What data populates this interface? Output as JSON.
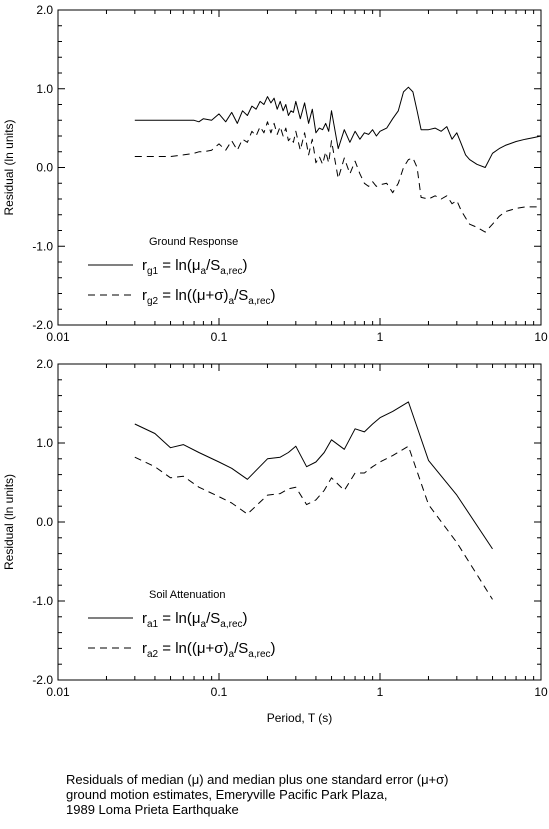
{
  "chart_data": [
    {
      "type": "line",
      "xscale": "log",
      "xlim": [
        0.01,
        10
      ],
      "ylim": [
        -2.0,
        2.0
      ],
      "x_tick_labels": [
        "0.01",
        "0.1",
        "1",
        "10"
      ],
      "y_tick_labels": [
        "2.0",
        "1.0",
        "0.0",
        "-1.0",
        "-2.0"
      ],
      "ylabel": "Residual (ln units)",
      "xlabel": "",
      "legend_title": "Ground Response",
      "legend_location": "lower-left",
      "series": [
        {
          "name": "r_g1 = ln(μ_a/S_a,rec)",
          "legend": {
            "main": "r",
            "sub": "g1",
            "eq": " = ln(μ",
            "sub2": "a",
            "mid": "/S",
            "sub3": "a,rec",
            "end": ")"
          },
          "style": "solid",
          "x": [
            0.03,
            0.04,
            0.05,
            0.06,
            0.07,
            0.075,
            0.08,
            0.09,
            0.1,
            0.11,
            0.12,
            0.13,
            0.14,
            0.15,
            0.16,
            0.17,
            0.18,
            0.19,
            0.2,
            0.21,
            0.22,
            0.23,
            0.24,
            0.25,
            0.26,
            0.27,
            0.28,
            0.29,
            0.3,
            0.32,
            0.34,
            0.36,
            0.38,
            0.4,
            0.42,
            0.44,
            0.46,
            0.48,
            0.5,
            0.55,
            0.6,
            0.65,
            0.7,
            0.75,
            0.8,
            0.85,
            0.9,
            0.95,
            1.0,
            1.1,
            1.2,
            1.3,
            1.4,
            1.5,
            1.6,
            1.7,
            1.8,
            2.0,
            2.2,
            2.4,
            2.6,
            2.8,
            3.0,
            3.2,
            3.4,
            3.6,
            4.0,
            4.5,
            5.0,
            5.5,
            6.0,
            7.0,
            8.0,
            9.0,
            10.0
          ],
          "values": [
            0.6,
            0.6,
            0.6,
            0.6,
            0.6,
            0.58,
            0.62,
            0.6,
            0.68,
            0.58,
            0.7,
            0.56,
            0.72,
            0.66,
            0.78,
            0.74,
            0.84,
            0.8,
            0.9,
            0.82,
            0.88,
            0.74,
            0.84,
            0.72,
            0.8,
            0.66,
            0.72,
            0.7,
            0.84,
            0.62,
            0.82,
            0.56,
            0.74,
            0.44,
            0.5,
            0.48,
            0.56,
            0.46,
            0.72,
            0.24,
            0.48,
            0.32,
            0.46,
            0.36,
            0.44,
            0.42,
            0.48,
            0.4,
            0.46,
            0.5,
            0.62,
            0.72,
            0.96,
            1.02,
            0.96,
            0.72,
            0.48,
            0.48,
            0.5,
            0.46,
            0.52,
            0.36,
            0.44,
            0.3,
            0.16,
            0.1,
            0.04,
            0.0,
            0.18,
            0.24,
            0.28,
            0.33,
            0.36,
            0.38,
            0.4
          ]
        },
        {
          "name": "r_g2 = ln((μ+σ)_a/S_a,rec)",
          "legend": {
            "main": "r",
            "sub": "g2",
            "eq": " = ln((μ+σ)",
            "sub2": "a",
            "mid": "/S",
            "sub3": "a,rec",
            "end": ")"
          },
          "style": "dashed",
          "x": [
            0.03,
            0.04,
            0.05,
            0.06,
            0.07,
            0.075,
            0.08,
            0.09,
            0.1,
            0.11,
            0.12,
            0.13,
            0.14,
            0.15,
            0.16,
            0.17,
            0.18,
            0.19,
            0.2,
            0.21,
            0.22,
            0.23,
            0.24,
            0.25,
            0.26,
            0.27,
            0.28,
            0.29,
            0.3,
            0.32,
            0.34,
            0.36,
            0.38,
            0.4,
            0.42,
            0.44,
            0.46,
            0.48,
            0.5,
            0.55,
            0.6,
            0.65,
            0.7,
            0.75,
            0.8,
            0.85,
            0.9,
            0.95,
            1.0,
            1.1,
            1.2,
            1.3,
            1.4,
            1.5,
            1.6,
            1.7,
            1.8,
            2.0,
            2.2,
            2.4,
            2.6,
            2.8,
            3.0,
            3.2,
            3.4,
            3.6,
            4.0,
            4.5,
            5.0,
            5.5,
            6.0,
            7.0,
            8.0,
            9.0,
            10.0
          ],
          "values": [
            0.14,
            0.14,
            0.14,
            0.16,
            0.18,
            0.2,
            0.2,
            0.22,
            0.3,
            0.22,
            0.34,
            0.22,
            0.36,
            0.32,
            0.46,
            0.4,
            0.52,
            0.44,
            0.58,
            0.44,
            0.56,
            0.42,
            0.52,
            0.4,
            0.5,
            0.34,
            0.38,
            0.32,
            0.46,
            0.22,
            0.44,
            0.16,
            0.36,
            0.06,
            0.14,
            0.04,
            0.2,
            0.06,
            0.34,
            -0.14,
            0.12,
            -0.08,
            0.08,
            -0.08,
            -0.2,
            -0.24,
            -0.18,
            -0.24,
            -0.22,
            -0.2,
            -0.32,
            -0.2,
            0.0,
            0.1,
            0.12,
            0.0,
            -0.38,
            -0.4,
            -0.36,
            -0.4,
            -0.36,
            -0.46,
            -0.42,
            -0.55,
            -0.64,
            -0.72,
            -0.76,
            -0.82,
            -0.72,
            -0.62,
            -0.56,
            -0.52,
            -0.5,
            -0.5,
            -0.5
          ]
        }
      ]
    },
    {
      "type": "line",
      "xscale": "log",
      "xlim": [
        0.01,
        10
      ],
      "ylim": [
        -2.0,
        2.0
      ],
      "x_tick_labels": [
        "0.01",
        "0.1",
        "1",
        "10"
      ],
      "y_tick_labels": [
        "2.0",
        "1.0",
        "0.0",
        "-1.0",
        "-2.0"
      ],
      "ylabel": "Residual (ln units)",
      "xlabel": "Period, T (s)",
      "legend_title": "Soil Attenuation",
      "legend_location": "lower-left",
      "series": [
        {
          "name": "r_a1 = ln(μ_a/S_a,rec)",
          "legend": {
            "main": "r",
            "sub": "a1",
            "eq": " = ln(μ",
            "sub2": "a",
            "mid": "/S",
            "sub3": "a,rec",
            "end": ")"
          },
          "style": "solid",
          "x": [
            0.03,
            0.04,
            0.05,
            0.06,
            0.075,
            0.1,
            0.12,
            0.15,
            0.2,
            0.24,
            0.27,
            0.3,
            0.35,
            0.4,
            0.45,
            0.5,
            0.6,
            0.7,
            0.8,
            0.9,
            1.0,
            1.2,
            1.5,
            2.0,
            3.0,
            5.0
          ],
          "values": [
            1.24,
            1.12,
            0.94,
            0.98,
            0.88,
            0.76,
            0.68,
            0.54,
            0.8,
            0.82,
            0.88,
            0.96,
            0.7,
            0.76,
            0.88,
            1.04,
            0.92,
            1.18,
            1.14,
            1.24,
            1.32,
            1.4,
            1.52,
            0.78,
            0.34,
            -0.34
          ]
        },
        {
          "name": "r_a2 = ln((μ+σ)_a/S_a,rec)",
          "legend": {
            "main": "r",
            "sub": "a2",
            "eq": " = ln((μ+σ)",
            "sub2": "a",
            "mid": "/S",
            "sub3": "a,rec",
            "end": ")"
          },
          "style": "dashed",
          "x": [
            0.03,
            0.04,
            0.05,
            0.06,
            0.075,
            0.1,
            0.12,
            0.15,
            0.2,
            0.24,
            0.27,
            0.3,
            0.35,
            0.4,
            0.45,
            0.5,
            0.6,
            0.7,
            0.8,
            0.9,
            1.0,
            1.2,
            1.5,
            2.0,
            3.0,
            5.0
          ],
          "values": [
            0.82,
            0.7,
            0.56,
            0.58,
            0.44,
            0.32,
            0.24,
            0.1,
            0.34,
            0.36,
            0.42,
            0.44,
            0.22,
            0.28,
            0.4,
            0.56,
            0.4,
            0.62,
            0.62,
            0.7,
            0.76,
            0.84,
            0.96,
            0.22,
            -0.26,
            -0.98
          ]
        }
      ]
    }
  ],
  "caption": {
    "line1": "Residuals of median (μ) and median plus one standard error (μ+σ)",
    "line2": "ground motion estimates, Emeryville Pacific Park Plaza,",
    "line3": "1989 Loma Prieta Earthquake"
  }
}
